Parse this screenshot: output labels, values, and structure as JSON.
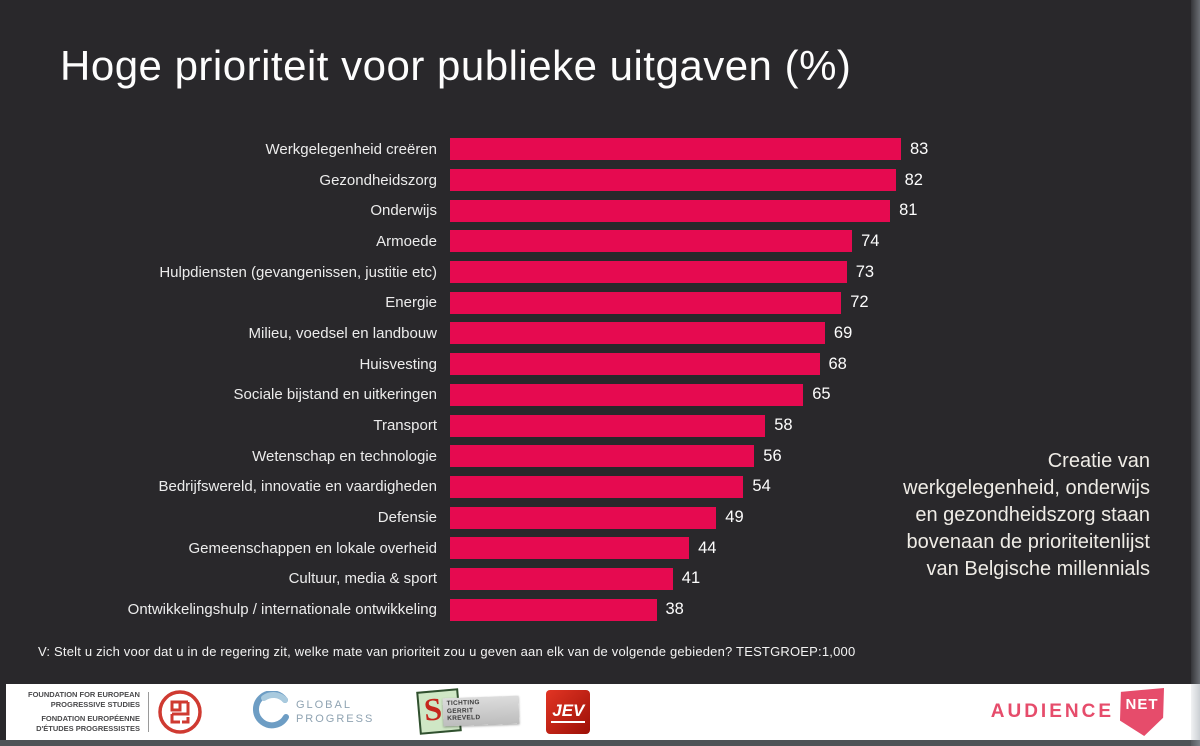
{
  "slide": {
    "title": "Hoge prioriteit voor publieke uitgaven (%)",
    "annotation": "Creatie van\nwerkgelegenheid, onderwijs\nen gezondheidszorg staan\nbovenaan de prioriteitenlijst\nvan Belgische millennials",
    "footnote": "V: Stelt u zich voor dat u in de regering zit, welke mate van prioriteit zou u geven aan elk van de volgende gebieden? TESTGROEP:1,000"
  },
  "chart_data": {
    "type": "bar",
    "orientation": "horizontal",
    "title": "Hoge prioriteit voor publieke uitgaven (%)",
    "categories": [
      "Werkgelegenheid creëren",
      "Gezondheidszorg",
      "Onderwijs",
      "Armoede",
      "Hulpdiensten (gevangenissen, justitie etc)",
      "Energie",
      "Milieu, voedsel en landbouw",
      "Huisvesting",
      "Sociale bijstand en uitkeringen",
      "Transport",
      "Wetenschap en technologie",
      "Bedrijfswereld, innovatie en vaardigheden",
      "Defensie",
      "Gemeenschappen en lokale overheid",
      "Cultuur, media & sport",
      "Ontwikkelingshulp / internationale ontwikkeling"
    ],
    "values": [
      83,
      82,
      81,
      74,
      73,
      72,
      69,
      68,
      65,
      58,
      56,
      54,
      49,
      44,
      41,
      38
    ],
    "xlim": [
      0,
      100
    ],
    "bar_color": "#e60a50",
    "value_labels_shown": true,
    "grid": false,
    "legend": false
  },
  "colors": {
    "background": "#29282b",
    "bar": "#e60a50",
    "title_text": "#fdfdfd",
    "label_text": "#ececec",
    "logo_bar_background": "#ffffff",
    "audiencenet_pink": "#e64c6b"
  },
  "footer_logos": {
    "feps": {
      "lines": [
        "FOUNDATION FOR EUROPEAN",
        "PROGRESSIVE STUDIES",
        "FONDATION EUROPÉENNE",
        "D'ÉTUDES PROGRESSISTES"
      ]
    },
    "global_progress": {
      "line1": "GLOBAL",
      "line2": "PROGRESS"
    },
    "stichting_gerrit_kreveld": {
      "initial": "S",
      "line1": "TICHTING",
      "line2": "GERRIT",
      "line3": "KREVELD"
    },
    "jev": {
      "label": "JEV"
    },
    "audiencenet": {
      "word": "AUDIENCE",
      "net": "NET"
    }
  }
}
